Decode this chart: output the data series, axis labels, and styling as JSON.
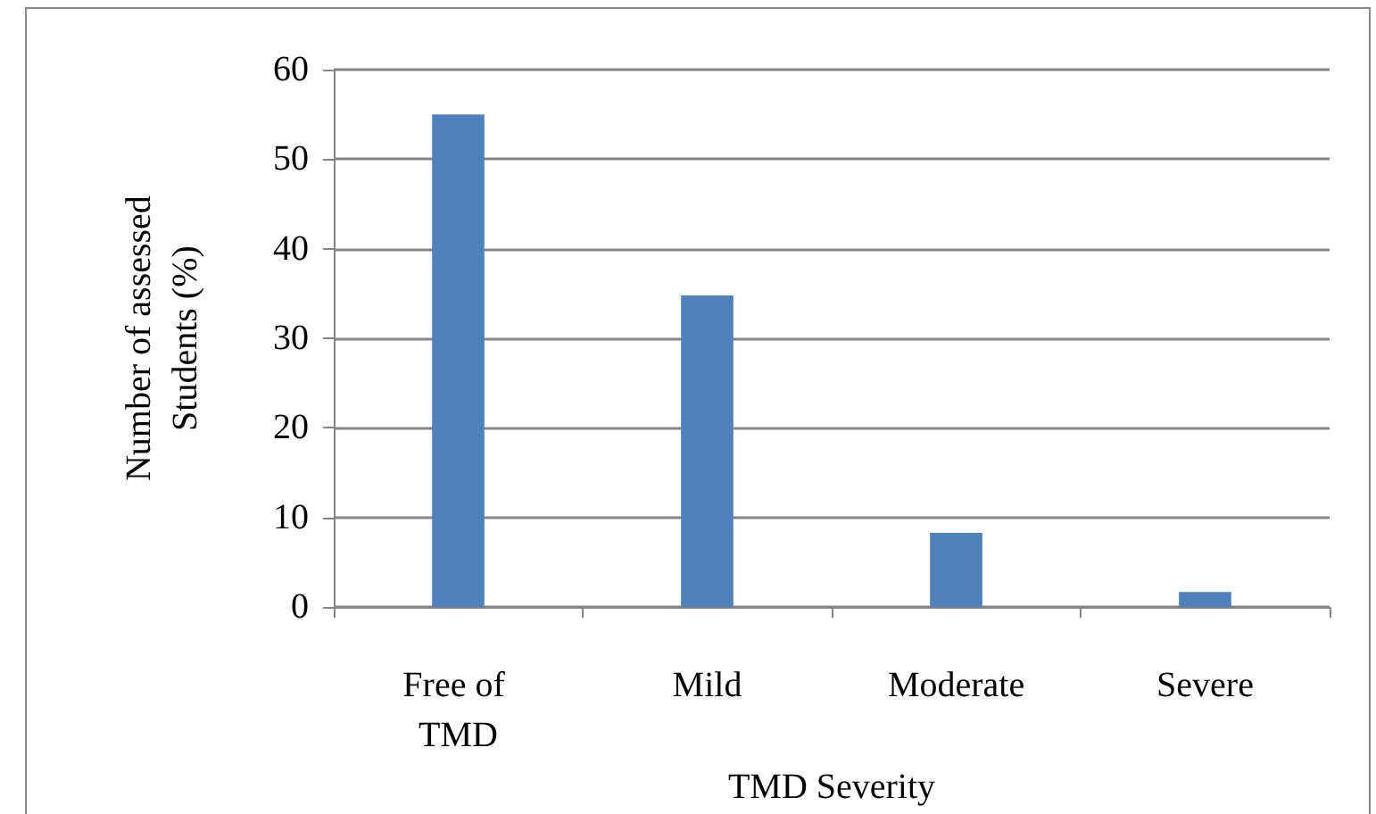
{
  "chart_data": {
    "type": "bar",
    "xlabel": "TMD Severity",
    "ylabel": "Number of assessed Students (%)",
    "categories": [
      "Free of TMD",
      "Mild",
      "Moderate",
      "Severe"
    ],
    "values": [
      55,
      34.8,
      8.3,
      1.7
    ],
    "color": "#4f81bd",
    "ylim": [
      0,
      60
    ],
    "yticks": [
      0,
      10,
      20,
      30,
      40,
      50,
      60
    ],
    "grid": "y"
  }
}
